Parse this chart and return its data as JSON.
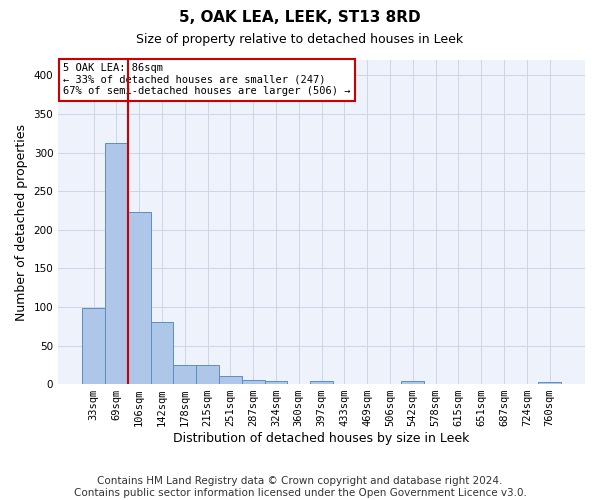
{
  "title": "5, OAK LEA, LEEK, ST13 8RD",
  "subtitle": "Size of property relative to detached houses in Leek",
  "xlabel": "Distribution of detached houses by size in Leek",
  "ylabel": "Number of detached properties",
  "footer_line1": "Contains HM Land Registry data © Crown copyright and database right 2024.",
  "footer_line2": "Contains public sector information licensed under the Open Government Licence v3.0.",
  "categories": [
    "33sqm",
    "69sqm",
    "106sqm",
    "142sqm",
    "178sqm",
    "215sqm",
    "251sqm",
    "287sqm",
    "324sqm",
    "360sqm",
    "397sqm",
    "433sqm",
    "469sqm",
    "506sqm",
    "542sqm",
    "578sqm",
    "615sqm",
    "651sqm",
    "687sqm",
    "724sqm",
    "760sqm"
  ],
  "values": [
    98,
    313,
    223,
    80,
    25,
    25,
    11,
    5,
    4,
    0,
    4,
    0,
    0,
    0,
    4,
    0,
    0,
    0,
    0,
    0,
    3
  ],
  "bar_color": "#aec6e8",
  "bar_edge_color": "#5a8fc2",
  "vline_x": 1.5,
  "vline_color": "#cc0000",
  "annotation_line1": "5 OAK LEA: 86sqm",
  "annotation_line2": "← 33% of detached houses are smaller (247)",
  "annotation_line3": "67% of semi-detached houses are larger (506) →",
  "annotation_box_color": "#ffffff",
  "annotation_box_edge": "#cc0000",
  "ylim": [
    0,
    420
  ],
  "yticks": [
    0,
    50,
    100,
    150,
    200,
    250,
    300,
    350,
    400
  ],
  "grid_color": "#cdd5e8",
  "bg_color": "#eef2fa",
  "title_fontsize": 11,
  "subtitle_fontsize": 9,
  "xlabel_fontsize": 9,
  "ylabel_fontsize": 9,
  "tick_fontsize": 7.5,
  "footer_fontsize": 7.5
}
